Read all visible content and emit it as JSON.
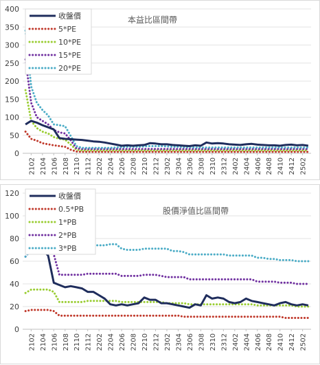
{
  "chart_data": [
    {
      "type": "line",
      "title": "本益比區間帶",
      "ylim": [
        0,
        400
      ],
      "yticks": [
        0,
        50,
        100,
        150,
        200,
        250,
        300,
        350,
        400
      ],
      "x_tick_labels": [
        "2102",
        "2104",
        "2106",
        "2108",
        "2110",
        "2112",
        "2202",
        "2204",
        "2206",
        "2208",
        "2210",
        "2212",
        "2302",
        "2304",
        "2306",
        "2308",
        "2310",
        "2312",
        "2402",
        "2404",
        "2406",
        "2408",
        "2410",
        "2412",
        "2502"
      ],
      "x": [
        "2101",
        "2102",
        "2103",
        "2104",
        "2105",
        "2106",
        "2107",
        "2108",
        "2109",
        "2110",
        "2111",
        "2112",
        "2201",
        "2202",
        "2203",
        "2204",
        "2205",
        "2206",
        "2207",
        "2208",
        "2209",
        "2210",
        "2211",
        "2212",
        "2301",
        "2302",
        "2303",
        "2304",
        "2305",
        "2306",
        "2307",
        "2308",
        "2309",
        "2310",
        "2311",
        "2312",
        "2401",
        "2402",
        "2403",
        "2404",
        "2405",
        "2406",
        "2407",
        "2408",
        "2409",
        "2410",
        "2411",
        "2412",
        "2501",
        "2502",
        "2503"
      ],
      "legend_position": "top-left",
      "grid": "horizontal",
      "series": [
        {
          "name": "收盤價",
          "color": "#1f2d5c",
          "style": "solid",
          "values": [
            80,
            90,
            85,
            78,
            72,
            66,
            42,
            40,
            39,
            38,
            37,
            35,
            33,
            32,
            30,
            27,
            24,
            21,
            22,
            21,
            22,
            23,
            28,
            27,
            25,
            25,
            23,
            22,
            21,
            20,
            22,
            21,
            30,
            27,
            28,
            27,
            25,
            24,
            23,
            25,
            26,
            24,
            23,
            22,
            22,
            21,
            23,
            24,
            22,
            23,
            21
          ]
        },
        {
          "name": "5*PE",
          "color": "#c0392b",
          "style": "dotted",
          "values": [
            60,
            40,
            35,
            28,
            25,
            22,
            20,
            18,
            10,
            5,
            4,
            4,
            4,
            4,
            4,
            4,
            4,
            4,
            4,
            4,
            4,
            4,
            4,
            4,
            4,
            4,
            4,
            4,
            4,
            4,
            4,
            4,
            4,
            4,
            4,
            4,
            4,
            4,
            4,
            4,
            4,
            4,
            4,
            4,
            4,
            4,
            4,
            4,
            4,
            4,
            4
          ]
        },
        {
          "name": "10*PE",
          "color": "#9acd32",
          "style": "dotted",
          "values": [
            175,
            90,
            70,
            60,
            55,
            45,
            40,
            38,
            24,
            10,
            8,
            8,
            8,
            8,
            8,
            8,
            8,
            8,
            8,
            8,
            8,
            8,
            8,
            8,
            8,
            8,
            8,
            8,
            8,
            8,
            8,
            8,
            8,
            8,
            8,
            8,
            8,
            8,
            8,
            8,
            8,
            8,
            8,
            8,
            8,
            8,
            8,
            8,
            8,
            8,
            8
          ]
        },
        {
          "name": "15*PE",
          "color": "#7030a0",
          "style": "dotted",
          "values": [
            260,
            140,
            100,
            90,
            80,
            65,
            58,
            55,
            36,
            14,
            12,
            12,
            12,
            12,
            12,
            12,
            12,
            12,
            12,
            12,
            12,
            12,
            12,
            12,
            12,
            12,
            12,
            12,
            12,
            12,
            12,
            12,
            12,
            12,
            12,
            12,
            12,
            12,
            12,
            12,
            12,
            12,
            12,
            12,
            12,
            12,
            12,
            12,
            12,
            12,
            12
          ]
        },
        {
          "name": "20*PE",
          "color": "#4bacc6",
          "style": "dotted",
          "values": [
            340,
            185,
            140,
            120,
            105,
            80,
            78,
            75,
            48,
            20,
            15,
            15,
            15,
            15,
            15,
            15,
            16,
            17,
            18,
            18,
            18,
            19,
            20,
            20,
            20,
            19,
            18,
            18,
            17,
            17,
            16,
            16,
            16,
            16,
            16,
            16,
            16,
            16,
            16,
            16,
            16,
            16,
            16,
            16,
            16,
            16,
            16,
            16,
            16,
            16,
            16
          ]
        }
      ]
    },
    {
      "type": "line",
      "title": "股價淨值比區間帶",
      "ylim": [
        0,
        120
      ],
      "yticks": [
        0,
        20,
        40,
        60,
        80,
        100,
        120
      ],
      "x_tick_labels": [
        "2102",
        "2104",
        "2106",
        "2108",
        "2110",
        "2112",
        "2202",
        "2204",
        "2206",
        "2208",
        "2210",
        "2212",
        "2302",
        "2304",
        "2306",
        "2308",
        "2310",
        "2312",
        "2402",
        "2404",
        "2406",
        "2408",
        "2410",
        "2412",
        "2502"
      ],
      "x": [
        "2101",
        "2102",
        "2103",
        "2104",
        "2105",
        "2106",
        "2107",
        "2108",
        "2109",
        "2110",
        "2111",
        "2112",
        "2201",
        "2202",
        "2203",
        "2204",
        "2205",
        "2206",
        "2207",
        "2208",
        "2209",
        "2210",
        "2211",
        "2212",
        "2301",
        "2302",
        "2303",
        "2304",
        "2305",
        "2306",
        "2307",
        "2308",
        "2309",
        "2310",
        "2311",
        "2312",
        "2401",
        "2402",
        "2403",
        "2404",
        "2405",
        "2406",
        "2407",
        "2408",
        "2409",
        "2410",
        "2411",
        "2412",
        "2501",
        "2502",
        "2503"
      ],
      "legend_position": "top-left",
      "grid": "horizontal",
      "series": [
        {
          "name": "收盤價",
          "color": "#1f2d5c",
          "style": "solid",
          "values": [
            69,
            71,
            72,
            70,
            65,
            41,
            39,
            37,
            38,
            37,
            36,
            33,
            33,
            30,
            27,
            22,
            21,
            22,
            21,
            22,
            23,
            28,
            26,
            26,
            23,
            23,
            22,
            21,
            20,
            19,
            22,
            21,
            30,
            27,
            28,
            27,
            24,
            23,
            24,
            27,
            25,
            24,
            23,
            22,
            21,
            23,
            24,
            22,
            21,
            22,
            21
          ]
        },
        {
          "name": "0.5*PB",
          "color": "#c0392b",
          "style": "dotted",
          "values": [
            16,
            17,
            17,
            17,
            17,
            16,
            12,
            12,
            12,
            12,
            12,
            12,
            12,
            12,
            12,
            12,
            12,
            12,
            12,
            12,
            12,
            12,
            12,
            12,
            12,
            12,
            12,
            12,
            11,
            11,
            11,
            11,
            11,
            11,
            11,
            11,
            11,
            11,
            11,
            11,
            11,
            11,
            11,
            11,
            11,
            11,
            10,
            10,
            10,
            10,
            10
          ]
        },
        {
          "name": "1*PB",
          "color": "#9acd32",
          "style": "dotted",
          "values": [
            32,
            35,
            35,
            35,
            35,
            33,
            24,
            24,
            24,
            24,
            24,
            25,
            25,
            25,
            25,
            25,
            25,
            24,
            24,
            24,
            24,
            24,
            24,
            24,
            24,
            23,
            23,
            23,
            23,
            22,
            22,
            22,
            22,
            22,
            22,
            22,
            22,
            22,
            22,
            22,
            22,
            21,
            21,
            21,
            21,
            21,
            21,
            21,
            20,
            20,
            20
          ]
        },
        {
          "name": "2*PB",
          "color": "#7030a0",
          "style": "dotted",
          "values": [
            64,
            70,
            70,
            70,
            70,
            66,
            48,
            48,
            48,
            48,
            48,
            49,
            49,
            49,
            49,
            49,
            49,
            47,
            47,
            47,
            47,
            48,
            48,
            48,
            47,
            46,
            46,
            46,
            46,
            44,
            44,
            44,
            44,
            44,
            44,
            44,
            44,
            44,
            44,
            44,
            44,
            42,
            42,
            42,
            42,
            41,
            41,
            41,
            40,
            40,
            40
          ]
        },
        {
          "name": "3*PB",
          "color": "#4bacc6",
          "style": "dotted",
          "values": [
            64,
            70,
            70,
            70,
            70,
            70,
            72,
            72,
            72,
            72,
            72,
            74,
            74,
            74,
            74,
            75,
            75,
            71,
            70,
            70,
            70,
            71,
            71,
            71,
            71,
            71,
            69,
            69,
            68,
            66,
            66,
            66,
            66,
            66,
            66,
            66,
            65,
            65,
            65,
            65,
            65,
            63,
            63,
            62,
            62,
            61,
            61,
            61,
            60,
            60,
            60
          ]
        }
      ]
    }
  ]
}
